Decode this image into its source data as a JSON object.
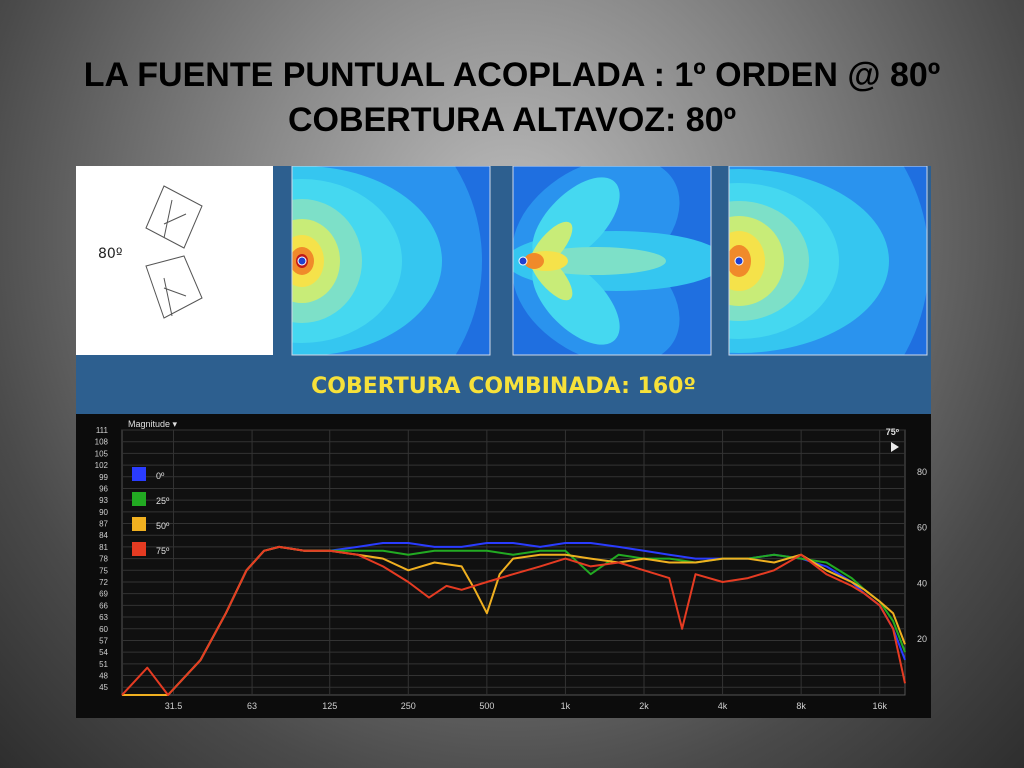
{
  "slide": {
    "title_line1": "LA FUENTE PUNTUAL ACOPLADA : 1º ORDEN @ 80º",
    "title_line2": "COBERTURA ALTAVOZ: 80º",
    "array_angle_label": "80º",
    "combined_label": "COBERTURA COMBINADA: 160º"
  },
  "colors": {
    "panel_bg": "#2d5f8f",
    "title": "#000000",
    "combined_text": "#f7e13a",
    "plot_bg": "#101010"
  },
  "chart_data": {
    "type": "line",
    "title": "Magnitude ▾",
    "phase_readout": "75º",
    "x_scale": "log",
    "xlim": [
      20,
      20000
    ],
    "ylim": [
      43,
      111
    ],
    "x_ticks": [
      "31.5",
      "63",
      "125",
      "250",
      "500",
      "1k",
      "2k",
      "4k",
      "8k",
      "16k"
    ],
    "x_tick_values": [
      31.5,
      63,
      125,
      250,
      500,
      1000,
      2000,
      4000,
      8000,
      16000
    ],
    "y_ticks": [
      "111",
      "108",
      "105",
      "102",
      "99",
      "96",
      "93",
      "90",
      "87",
      "84",
      "81",
      "78",
      "75",
      "72",
      "69",
      "66",
      "63",
      "60",
      "57",
      "54",
      "51",
      "48",
      "45"
    ],
    "y_tick_values": [
      111,
      108,
      105,
      102,
      99,
      96,
      93,
      90,
      87,
      84,
      81,
      78,
      75,
      72,
      69,
      66,
      63,
      60,
      57,
      54,
      51,
      48,
      45
    ],
    "right_axis_ticks": [
      "80",
      "60",
      "40",
      "20"
    ],
    "right_axis_values": [
      80,
      60,
      40,
      20
    ],
    "right_axis_range": [
      0,
      95
    ],
    "grid": true,
    "legend_position": "top-left",
    "series": [
      {
        "name": "0º",
        "color": "#2a3cff",
        "x": [
          20,
          25,
          30,
          40,
          50,
          60,
          70,
          80,
          100,
          125,
          160,
          200,
          250,
          315,
          400,
          500,
          630,
          800,
          1000,
          1250,
          1600,
          2000,
          2500,
          3150,
          4000,
          5000,
          6300,
          8000,
          10000,
          12500,
          14000,
          16000,
          18000,
          20000
        ],
        "y": [
          43,
          43,
          43,
          52,
          64,
          75,
          80,
          81,
          80,
          80,
          81,
          82,
          82,
          81,
          81,
          82,
          82,
          81,
          82,
          82,
          81,
          80,
          79,
          78,
          78,
          78,
          79,
          78,
          76,
          72,
          69,
          66,
          60,
          52
        ]
      },
      {
        "name": "25º",
        "color": "#22aa22",
        "x": [
          20,
          25,
          30,
          40,
          50,
          60,
          70,
          80,
          100,
          125,
          160,
          200,
          250,
          315,
          400,
          500,
          630,
          800,
          1000,
          1250,
          1600,
          2000,
          2500,
          3150,
          4000,
          5000,
          6300,
          8000,
          10000,
          12500,
          14000,
          16000,
          18000,
          20000
        ],
        "y": [
          43,
          43,
          43,
          52,
          64,
          75,
          80,
          81,
          80,
          80,
          80,
          80,
          79,
          80,
          80,
          80,
          79,
          80,
          80,
          74,
          79,
          78,
          78,
          77,
          78,
          78,
          79,
          78,
          77,
          73,
          70,
          67,
          62,
          54
        ]
      },
      {
        "name": "50º",
        "color": "#f0b020",
        "x": [
          20,
          25,
          30,
          40,
          50,
          60,
          70,
          80,
          100,
          125,
          160,
          200,
          250,
          315,
          400,
          450,
          500,
          560,
          630,
          800,
          1000,
          1250,
          1600,
          2000,
          2500,
          3150,
          4000,
          5000,
          6300,
          8000,
          10000,
          12500,
          14000,
          16000,
          18000,
          20000
        ],
        "y": [
          43,
          43,
          43,
          52,
          64,
          75,
          80,
          81,
          80,
          80,
          79,
          78,
          75,
          77,
          76,
          70,
          64,
          74,
          78,
          79,
          79,
          78,
          77,
          78,
          77,
          77,
          78,
          78,
          77,
          79,
          75,
          72,
          70,
          67,
          64,
          56
        ]
      },
      {
        "name": "75º",
        "color": "#e53b22",
        "x": [
          20,
          25,
          30,
          40,
          50,
          60,
          70,
          80,
          100,
          125,
          160,
          200,
          250,
          300,
          350,
          400,
          500,
          630,
          800,
          1000,
          1250,
          1600,
          2000,
          2500,
          2800,
          3150,
          4000,
          5000,
          6300,
          8000,
          10000,
          12500,
          14000,
          16000,
          18000,
          20000
        ],
        "y": [
          43,
          50,
          43,
          52,
          64,
          75,
          80,
          81,
          80,
          80,
          79,
          76,
          72,
          68,
          71,
          70,
          72,
          74,
          76,
          78,
          76,
          77,
          75,
          73,
          60,
          74,
          72,
          73,
          75,
          79,
          74,
          71,
          69,
          66,
          60,
          46
        ]
      }
    ]
  }
}
